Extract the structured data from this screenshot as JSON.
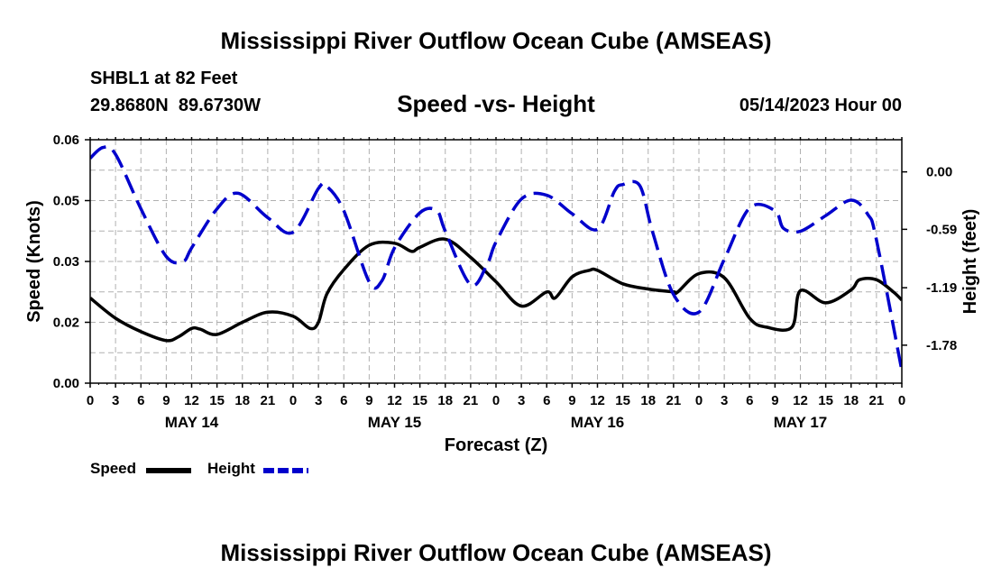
{
  "header": {
    "title": "Mississippi River Outflow Ocean Cube (AMSEAS)",
    "station": "SHBL1 at 82 Feet",
    "coords": "29.8680N  89.6730W",
    "chart_title": "Speed -vs- Height",
    "datetime": "05/14/2023 Hour 00"
  },
  "footer": {
    "title": "Mississippi River Outflow Ocean Cube (AMSEAS)"
  },
  "legend": [
    {
      "label": "Speed",
      "color": "#000000",
      "dashed": false
    },
    {
      "label": "Height",
      "color": "#0000cc",
      "dashed": true
    }
  ],
  "chart_data": {
    "type": "line",
    "title": "Speed -vs- Height",
    "xlabel": "Forecast (Z)",
    "ylabel": "Speed (Knots)",
    "y2label": "Height (feet)",
    "grid": true,
    "x_ticks": [
      "0",
      "3",
      "6",
      "9",
      "12",
      "15",
      "18",
      "21",
      "0",
      "3",
      "6",
      "9",
      "12",
      "15",
      "18",
      "21",
      "0",
      "3",
      "6",
      "9",
      "12",
      "15",
      "18",
      "21",
      "0",
      "3",
      "6",
      "9",
      "12",
      "15",
      "18",
      "21",
      "0"
    ],
    "day_labels": [
      {
        "label": "MAY 14",
        "hour": 12
      },
      {
        "label": "MAY 15",
        "hour": 36
      },
      {
        "label": "MAY 16",
        "hour": 60
      },
      {
        "label": "MAY 17",
        "hour": 84
      }
    ],
    "xlim": [
      0,
      96
    ],
    "ylim": [
      0,
      0.06
    ],
    "y_ticks": [
      0,
      0.015,
      0.03,
      0.045,
      0.06
    ],
    "y_tick_labels": [
      "0.00",
      "0.02",
      "0.03",
      "0.05",
      "0.06"
    ],
    "y2lim": [
      -2.17,
      0.33
    ],
    "y2_ticks": [
      0.0,
      -0.59,
      -1.19,
      -1.78
    ],
    "y2_tick_labels": [
      "0.00",
      "-0.59",
      "-1.19",
      "-1.78"
    ],
    "series": [
      {
        "name": "Speed",
        "axis": "left",
        "color": "#000000",
        "dashed": false,
        "x": [
          0,
          3,
          6,
          9,
          10.5,
          12,
          13,
          15,
          18,
          21,
          24,
          26,
          27,
          28,
          30,
          33,
          36,
          38,
          39,
          42,
          45,
          48,
          51,
          54,
          55,
          57,
          59,
          60,
          63,
          66,
          69,
          69.5,
          72,
          75,
          78,
          80,
          83,
          84,
          87,
          90,
          91,
          93,
          95,
          96
        ],
        "y": [
          0.021,
          0.016,
          0.0127,
          0.0105,
          0.0115,
          0.0135,
          0.0133,
          0.012,
          0.015,
          0.0175,
          0.0165,
          0.0135,
          0.015,
          0.022,
          0.028,
          0.034,
          0.0345,
          0.0325,
          0.0335,
          0.0355,
          0.031,
          0.025,
          0.019,
          0.0225,
          0.021,
          0.0262,
          0.0278,
          0.0278,
          0.0245,
          0.0232,
          0.0225,
          0.0225,
          0.027,
          0.026,
          0.016,
          0.0138,
          0.0138,
          0.0228,
          0.0198,
          0.023,
          0.0255,
          0.0255,
          0.0225,
          0.0205
        ]
      },
      {
        "name": "Height",
        "axis": "right",
        "color": "#0000cc",
        "dashed": true,
        "x": [
          0,
          1.5,
          3,
          6,
          9,
          11,
          12,
          15,
          17.5,
          21,
          24,
          27,
          28,
          30,
          33,
          34.5,
          36,
          39,
          41,
          42,
          45,
          47,
          48,
          51,
          54,
          57,
          60,
          62,
          63,
          65,
          66.5,
          69,
          72,
          75,
          78,
          81,
          82,
          84,
          87,
          90,
          92,
          93,
          96
        ],
        "y": [
          0.14,
          0.25,
          0.18,
          -0.38,
          -0.87,
          -0.92,
          -0.78,
          -0.38,
          -0.22,
          -0.47,
          -0.62,
          -0.17,
          -0.15,
          -0.4,
          -1.13,
          -1.12,
          -0.78,
          -0.42,
          -0.4,
          -0.61,
          -1.16,
          -0.94,
          -0.72,
          -0.28,
          -0.24,
          -0.43,
          -0.59,
          -0.2,
          -0.13,
          -0.14,
          -0.61,
          -1.26,
          -1.44,
          -0.9,
          -0.37,
          -0.4,
          -0.58,
          -0.61,
          -0.45,
          -0.29,
          -0.44,
          -0.7,
          -2.04
        ]
      }
    ]
  }
}
